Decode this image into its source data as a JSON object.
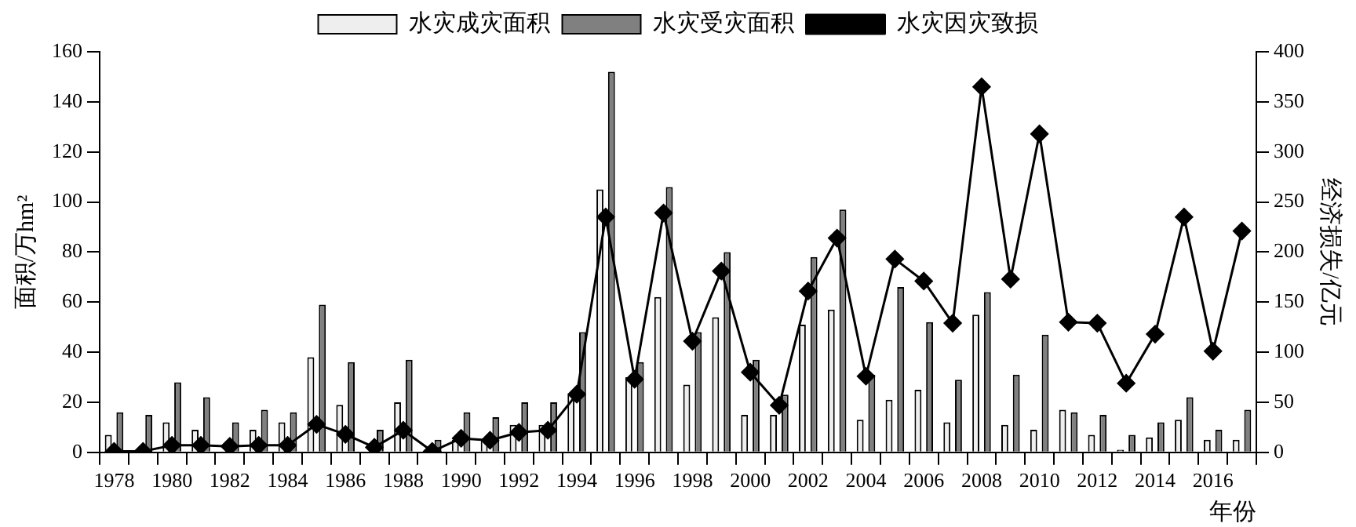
{
  "chart_data": {
    "type": "bar",
    "xlabel": "年份",
    "ylabel": "面积/万hm²",
    "y2label": "经济损失/亿元",
    "categories": [
      "1978",
      null,
      "1980",
      null,
      "1982",
      null,
      "1984",
      null,
      "1986",
      null,
      "1988",
      null,
      "1990",
      null,
      "1992",
      null,
      "1994",
      null,
      "1996",
      null,
      "1998",
      null,
      "2000",
      null,
      "2002",
      null,
      "2004",
      null,
      "2006",
      null,
      "2008",
      null,
      "2010",
      null,
      "2012",
      null,
      "2014",
      null,
      "2016",
      null
    ],
    "series": [
      {
        "name": "水灾成灾面积",
        "color": "#eeeeee",
        "values": [
          7,
          null,
          12,
          9,
          0,
          9,
          12,
          38,
          19,
          null,
          20,
          null,
          5,
          5,
          11,
          11,
          23,
          105,
          30,
          62,
          27,
          54,
          15,
          15,
          51,
          57,
          13,
          21,
          25,
          12,
          55,
          11,
          9,
          17,
          7,
          1,
          6,
          13,
          5,
          5
        ]
      },
      {
        "name": "水灾受灾面积",
        "color": "#808080",
        "values": [
          16,
          15,
          28,
          22,
          12,
          17,
          16,
          59,
          36,
          9,
          37,
          5,
          16,
          14,
          20,
          20,
          48,
          152,
          36,
          106,
          48,
          80,
          37,
          23,
          78,
          97,
          31,
          66,
          52,
          29,
          64,
          31,
          47,
          16,
          15,
          7,
          12,
          22,
          9,
          17
        ]
      },
      {
        "name": "水灾因灾致损",
        "type": "line",
        "axis": "y2",
        "color": "#000000",
        "values": [
          1,
          1,
          7,
          7,
          6,
          7,
          7,
          28,
          18,
          5,
          22,
          1,
          14,
          12,
          20,
          22,
          58,
          235,
          73,
          239,
          111,
          181,
          80,
          47,
          161,
          214,
          76,
          193,
          171,
          129,
          365,
          173,
          318,
          130,
          129,
          69,
          118,
          235,
          101,
          221
        ]
      }
    ],
    "ylim": [
      0,
      160
    ],
    "yticks": [
      0,
      20,
      40,
      60,
      80,
      100,
      120,
      140,
      160
    ],
    "y2lim": [
      0,
      400
    ],
    "y2ticks": [
      0,
      50,
      100,
      150,
      200,
      250,
      300,
      350,
      400
    ],
    "grid": false,
    "legend": "top",
    "marker": "diamond",
    "line_style": "solid"
  }
}
